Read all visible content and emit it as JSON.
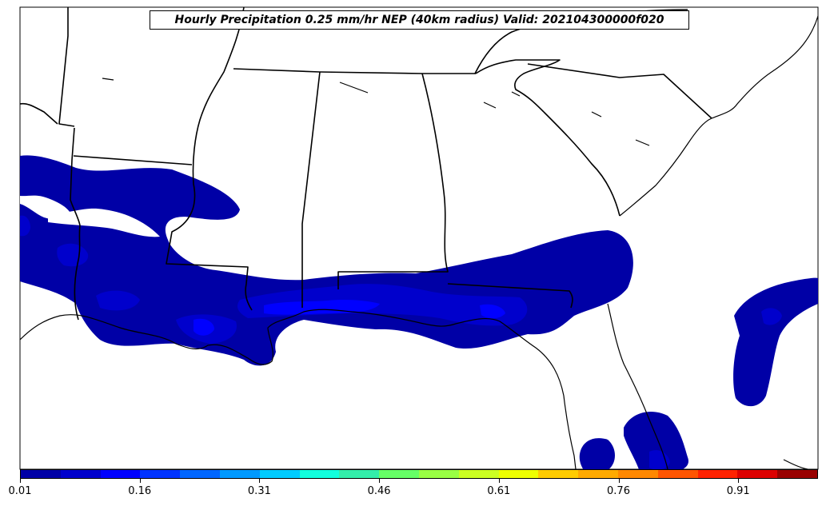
{
  "title": "Hourly Precipitation 0.25 mm/hr NEP (40km radius) Valid: 202104300000f020",
  "colorbar": {
    "colors": [
      "#0000a6",
      "#0000cc",
      "#0000ff",
      "#0033ff",
      "#0066ff",
      "#0099ff",
      "#00ccff",
      "#11ffdd",
      "#33eeaa",
      "#66ff66",
      "#99ff44",
      "#ccff22",
      "#eeff00",
      "#ffcc00",
      "#ffaa00",
      "#ff8800",
      "#ff5500",
      "#ff2200",
      "#dd0000",
      "#990000"
    ],
    "ticks": [
      "0.01",
      "0.16",
      "0.31",
      "0.46",
      "0.61",
      "0.76",
      "0.91"
    ]
  },
  "precip_colors": {
    "low": "#0000a6",
    "mid": "#0000cc",
    "high": "#0000ff"
  }
}
